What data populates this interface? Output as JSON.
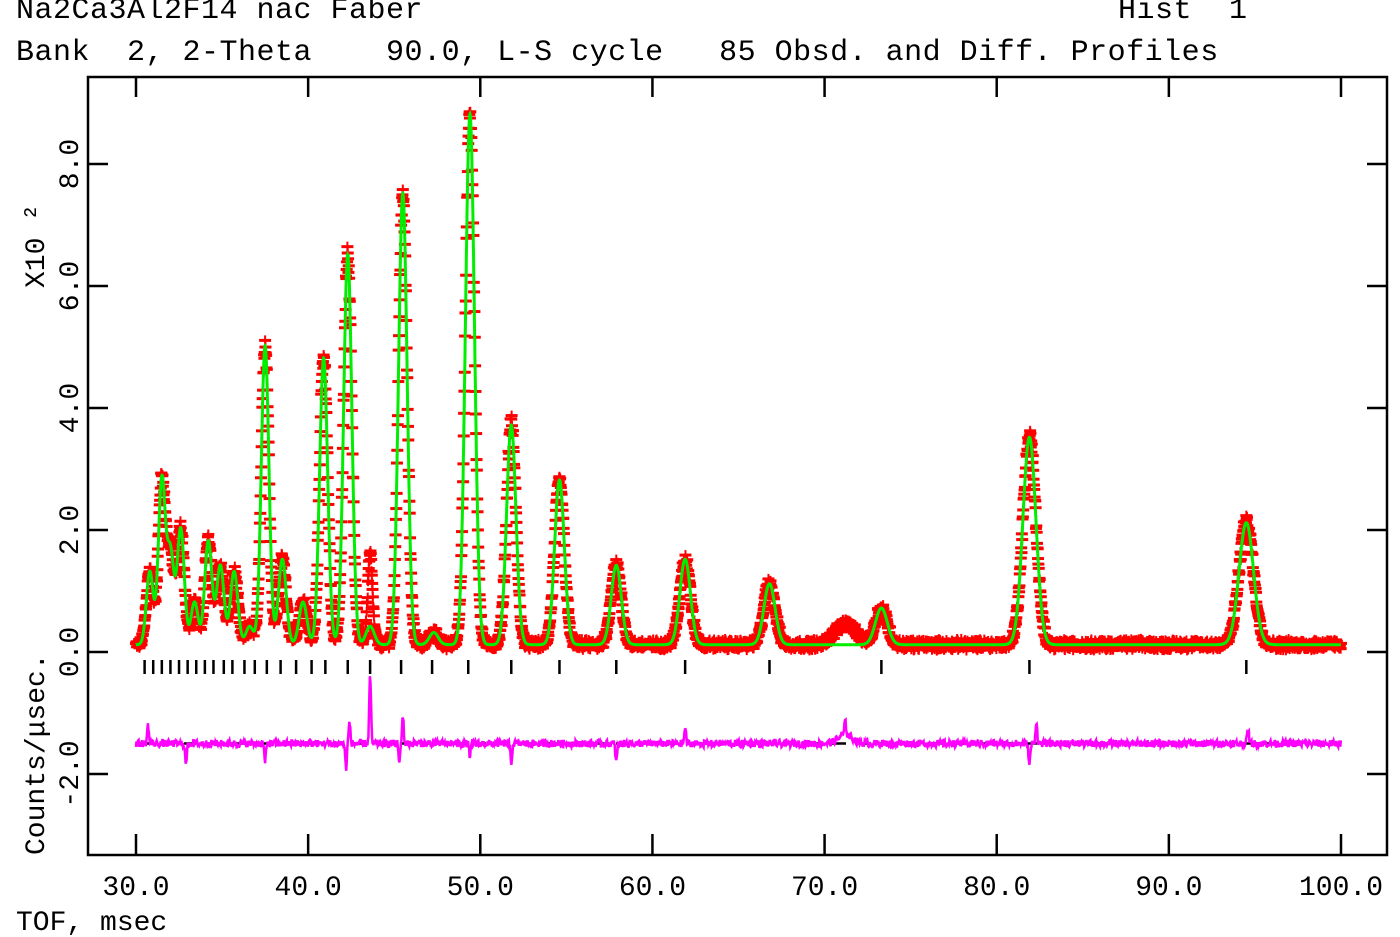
{
  "header": {
    "title_line1": "Na2Ca3Al2F14 nac Faber",
    "hist_label": "Hist  1",
    "title_line2": "Bank  2, 2-Theta    90.0, L-S cycle   85 Obsd. and Diff. Profiles"
  },
  "axes": {
    "xlabel": "TOF, msec",
    "ylabel": "Counts/μsec.",
    "y_multiplier": "X10 ²",
    "x_ticks": [
      "30.0",
      "40.0",
      "50.0",
      "60.0",
      "70.0",
      "80.0",
      "90.0",
      "100.0"
    ],
    "y_ticks": [
      "-2.0",
      "0.0",
      "2.0",
      "4.0",
      "6.0",
      "8.0"
    ]
  },
  "colors": {
    "observed": "#ff0000",
    "calculated": "#00ee00",
    "difference": "#ff00ff",
    "reflection_ticks": "#000000",
    "frame": "#000000"
  },
  "chart_data": {
    "type": "line",
    "title": "Na2Ca3Al2F14 nac Faber — Bank 2, 2-Theta 90.0, L-S cycle 85 Obsd. and Diff. Profiles",
    "subtitle": "Hist 1",
    "xlabel": "TOF, msec",
    "ylabel": "Counts/μsec. (X10^2)",
    "xlim": [
      27.2,
      102.6
    ],
    "ylim": [
      -3.4,
      9.0
    ],
    "grid": false,
    "legend": null,
    "background": 0.12,
    "series": [
      {
        "name": "Observed (red +)",
        "style": "markers"
      },
      {
        "name": "Calculated (green line)",
        "style": "line"
      },
      {
        "name": "Difference (magenta)",
        "style": "line",
        "offset": -1.5
      },
      {
        "name": "Reflection positions (black ticks)",
        "style": "ticks"
      }
    ],
    "peaks": [
      {
        "x": 30.8,
        "height": 1.2
      },
      {
        "x": 31.5,
        "height": 2.7
      },
      {
        "x": 32.0,
        "height": 1.5
      },
      {
        "x": 32.6,
        "height": 1.9
      },
      {
        "x": 33.4,
        "height": 0.7
      },
      {
        "x": 34.2,
        "height": 1.7
      },
      {
        "x": 34.9,
        "height": 1.3
      },
      {
        "x": 35.7,
        "height": 1.2
      },
      {
        "x": 36.6,
        "height": 0.3
      },
      {
        "x": 37.5,
        "height": 4.9
      },
      {
        "x": 38.5,
        "height": 1.4
      },
      {
        "x": 39.7,
        "height": 0.7
      },
      {
        "x": 40.9,
        "height": 4.7
      },
      {
        "x": 42.3,
        "height": 6.4
      },
      {
        "x": 43.6,
        "height": 0.3
      },
      {
        "x": 45.5,
        "height": 7.4
      },
      {
        "x": 47.3,
        "height": 0.2
      },
      {
        "x": 49.4,
        "height": 8.7
      },
      {
        "x": 51.8,
        "height": 3.6
      },
      {
        "x": 54.6,
        "height": 2.7
      },
      {
        "x": 57.9,
        "height": 1.3
      },
      {
        "x": 61.9,
        "height": 1.4
      },
      {
        "x": 66.8,
        "height": 1.0
      },
      {
        "x": 73.3,
        "height": 0.6
      },
      {
        "x": 81.9,
        "height": 3.4
      },
      {
        "x": 94.5,
        "height": 2.0
      }
    ],
    "unfit_observed_bumps": [
      {
        "x": 43.6,
        "height": 1.2
      },
      {
        "x": 71.2,
        "height": 0.35
      }
    ],
    "reflection_ticks_x": [
      30.5,
      31.0,
      31.5,
      32.0,
      32.5,
      33.0,
      33.5,
      34.0,
      34.5,
      35.1,
      35.6,
      36.3,
      36.9,
      37.6,
      38.4,
      39.3,
      40.2,
      41.0,
      42.3,
      43.6,
      45.4,
      47.2,
      49.3,
      51.8,
      54.6,
      57.9,
      61.9,
      66.8,
      73.3,
      81.9,
      94.5
    ],
    "difference_spikes": [
      {
        "x": 30.7,
        "value": 0.3
      },
      {
        "x": 32.9,
        "value": -0.35
      },
      {
        "x": 37.5,
        "value": -0.3
      },
      {
        "x": 42.2,
        "value": -0.4
      },
      {
        "x": 42.4,
        "value": 0.35
      },
      {
        "x": 43.6,
        "value": 1.1
      },
      {
        "x": 45.5,
        "value": 0.45
      },
      {
        "x": 45.3,
        "value": -0.3
      },
      {
        "x": 49.4,
        "value": 0.55
      },
      {
        "x": 49.4,
        "value": -0.75
      },
      {
        "x": 51.8,
        "value": -0.3
      },
      {
        "x": 57.9,
        "value": -0.3
      },
      {
        "x": 61.9,
        "value": 0.25
      },
      {
        "x": 71.2,
        "value": 0.2
      },
      {
        "x": 81.9,
        "value": -0.35
      },
      {
        "x": 82.3,
        "value": 0.35
      },
      {
        "x": 94.6,
        "value": 0.25
      }
    ],
    "x_range_data": [
      30.0,
      100.0
    ]
  }
}
